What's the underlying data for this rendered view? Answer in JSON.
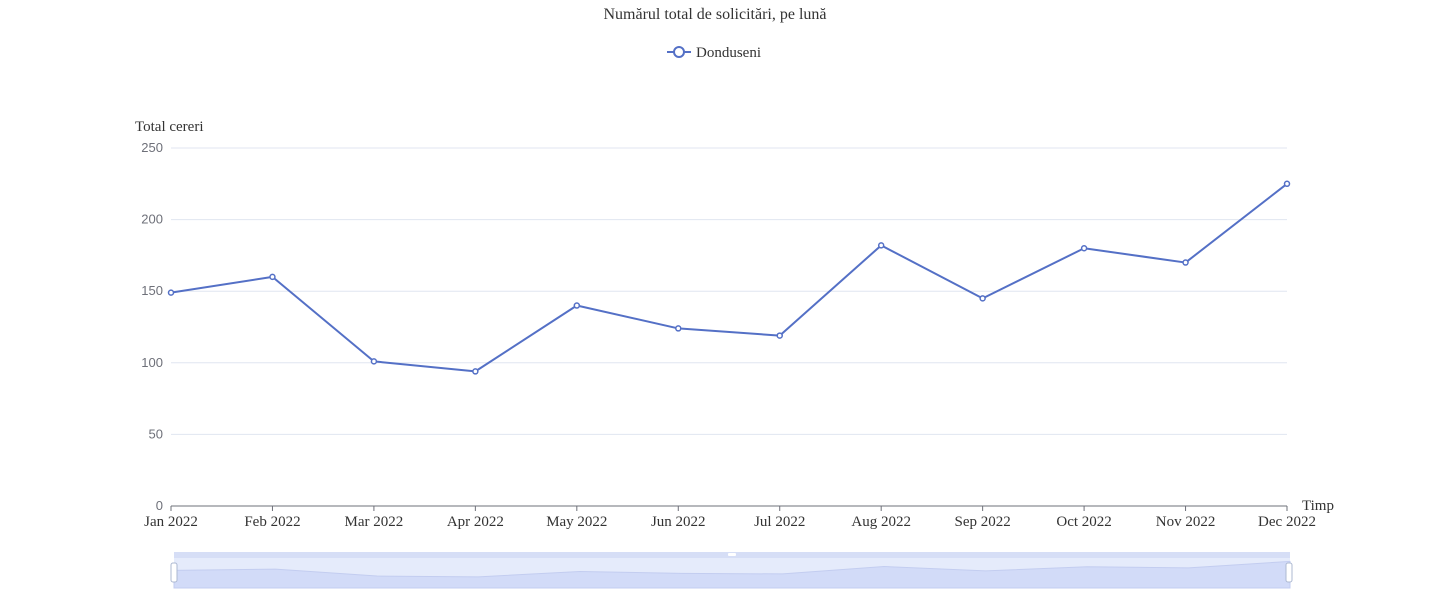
{
  "chart_data": {
    "type": "line",
    "title": "Numărul total de solicitări, pe lună",
    "xlabel": "Timp",
    "ylabel": "Total cereri",
    "categories": [
      "Jan 2022",
      "Feb 2022",
      "Mar 2022",
      "Apr 2022",
      "May 2022",
      "Jun 2022",
      "Jul 2022",
      "Aug 2022",
      "Sep 2022",
      "Oct 2022",
      "Nov 2022",
      "Dec 2022"
    ],
    "series": [
      {
        "name": "Donduseni",
        "values": [
          149,
          160,
          101,
          94,
          140,
          124,
          119,
          182,
          145,
          180,
          170,
          225
        ],
        "color": "#5470c6"
      }
    ],
    "ylim": [
      0,
      250
    ],
    "yticks": [
      0,
      50,
      100,
      150,
      200,
      250
    ],
    "grid": true,
    "legend_position": "top-center",
    "data_zoom": true,
    "colors": {
      "series": "#5470c6",
      "grid": "#e0e6f1",
      "axis": "#6e7079",
      "zoom_fill": "#d2dbf8",
      "zoom_bg": "#e5ebfb"
    }
  }
}
